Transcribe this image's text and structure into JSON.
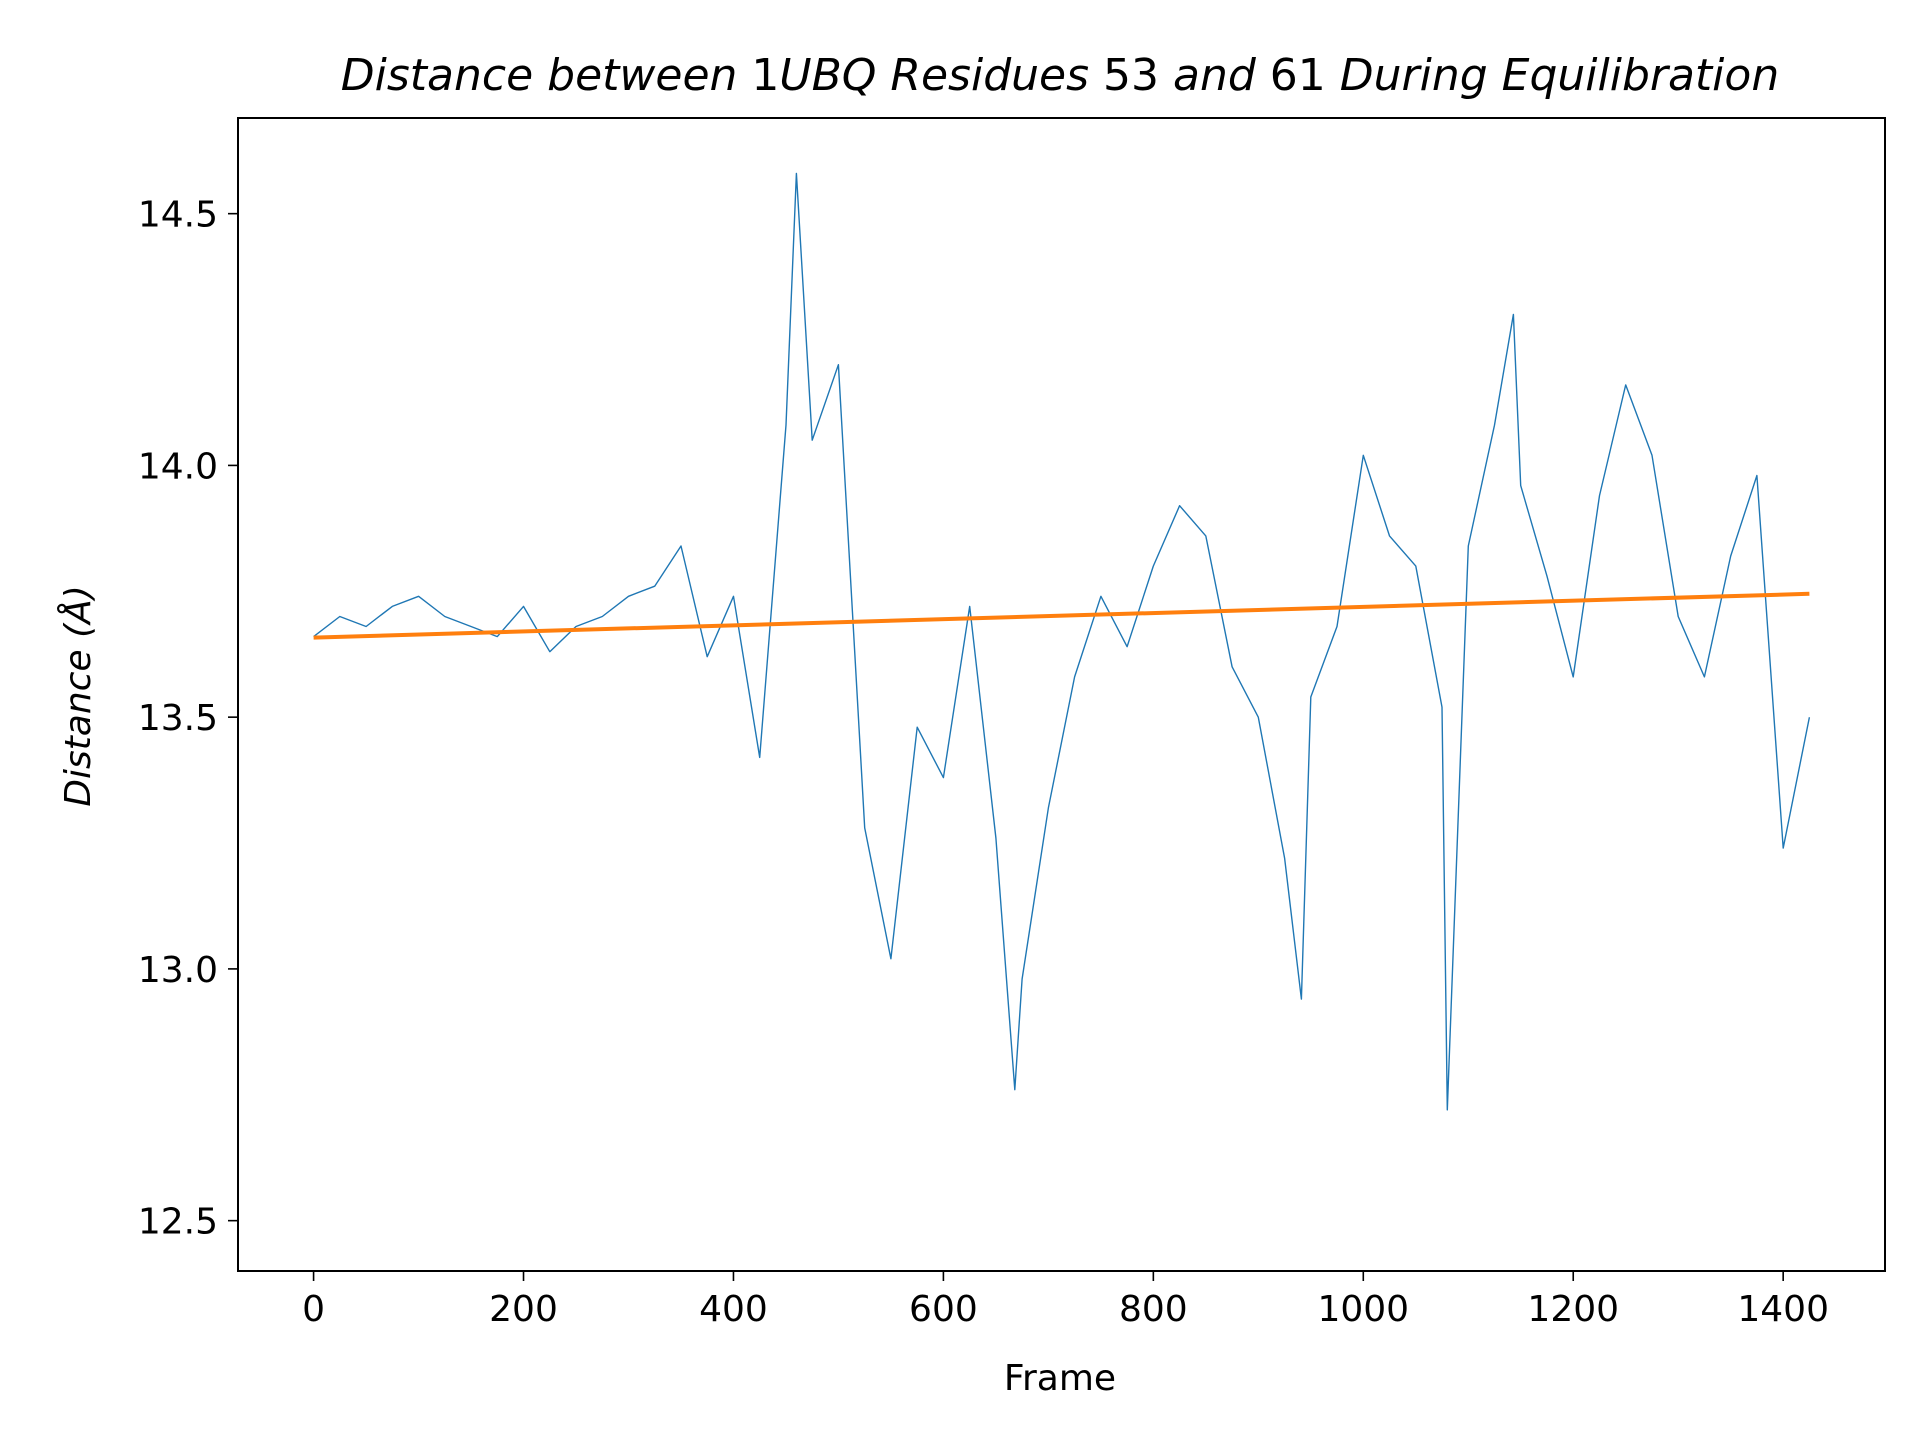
{
  "chart_data": {
    "type": "line",
    "title_parts": [
      {
        "text": "Distance between ",
        "italic": true
      },
      {
        "text": "1",
        "italic": false
      },
      {
        "text": "UBQ Residues ",
        "italic": true
      },
      {
        "text": "53",
        "italic": false
      },
      {
        "text": " and ",
        "italic": true
      },
      {
        "text": "61",
        "italic": false
      },
      {
        "text": " During Equilibration",
        "italic": true
      }
    ],
    "xlabel": "Frame",
    "ylabel": "Distance (Å)",
    "xlim": [
      -72,
      1497
    ],
    "ylim": [
      12.4,
      14.69
    ],
    "xticks": [
      0,
      200,
      400,
      600,
      800,
      1000,
      1200,
      1400
    ],
    "xtick_labels": [
      "0",
      "200",
      "400",
      "600",
      "800",
      "1000",
      "1200",
      "1400"
    ],
    "yticks": [
      12.5,
      13.0,
      13.5,
      14.0,
      14.5
    ],
    "ytick_labels": [
      "12.5",
      "13.0",
      "13.5",
      "14.0",
      "14.5"
    ],
    "grid": false,
    "series": [
      {
        "color": "#1f77b4",
        "line_width": "thin",
        "x": [
          0,
          25,
          50,
          75,
          100,
          125,
          150,
          175,
          200,
          225,
          250,
          275,
          300,
          325,
          350,
          375,
          400,
          425,
          450,
          460,
          475,
          500,
          525,
          550,
          575,
          600,
          625,
          650,
          668,
          675,
          700,
          725,
          750,
          775,
          800,
          825,
          850,
          875,
          900,
          925,
          941,
          950,
          975,
          1000,
          1025,
          1050,
          1075,
          1080,
          1100,
          1125,
          1143,
          1150,
          1175,
          1200,
          1225,
          1250,
          1275,
          1300,
          1325,
          1350,
          1375,
          1400,
          1425
        ],
        "values": [
          13.66,
          13.7,
          13.68,
          13.72,
          13.74,
          13.7,
          13.68,
          13.66,
          13.72,
          13.63,
          13.68,
          13.7,
          13.74,
          13.76,
          13.84,
          13.62,
          13.74,
          13.42,
          14.08,
          14.58,
          14.05,
          14.2,
          13.28,
          13.02,
          13.48,
          13.38,
          13.72,
          13.26,
          12.76,
          12.98,
          13.32,
          13.58,
          13.74,
          13.64,
          13.8,
          13.92,
          13.86,
          13.6,
          13.5,
          13.22,
          12.94,
          13.54,
          13.68,
          14.02,
          13.86,
          13.8,
          13.52,
          12.72,
          13.84,
          14.08,
          14.3,
          13.96,
          13.78,
          13.58,
          13.94,
          14.16,
          14.02,
          13.7,
          13.58,
          13.82,
          13.98,
          13.24,
          13.5
        ]
      },
      {
        "color": "#ff7f0e",
        "line_width": "thick",
        "x": [
          0,
          1425
        ],
        "values": [
          13.658,
          13.745
        ]
      }
    ]
  }
}
